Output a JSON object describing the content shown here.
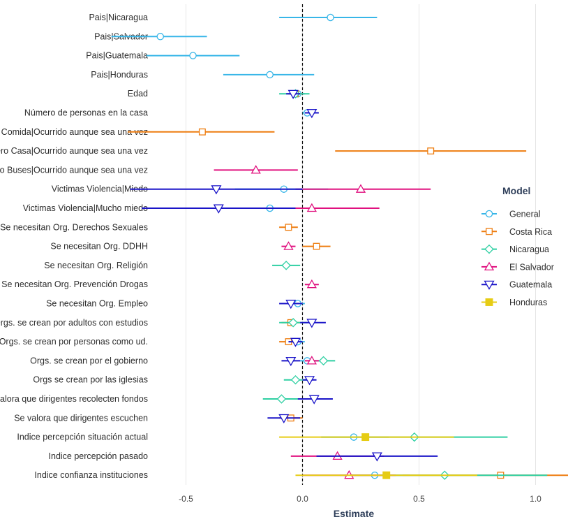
{
  "chart_data": {
    "type": "scatter",
    "subtype": "coefficient-plot",
    "xlabel": "Estimate",
    "xlim": [
      -0.97,
      1.2
    ],
    "xticks": [
      -0.5,
      0.0,
      0.5,
      1.0
    ],
    "xtick_labels": [
      "-0.5",
      "0.0",
      "0.5",
      "1.0"
    ],
    "reference_line": 0,
    "grid": true,
    "legend": {
      "title": "Model",
      "position": "right"
    },
    "categories": [
      "Pais|Nicaragua",
      "Pais|Salvador",
      "Pais|Guatemala",
      "Pais|Honduras",
      "Edad",
      "Número de personas en la casa",
      "Dinero Comida|Ocurrido aunque sea una vez",
      "Dinero Casa|Ocurrido aunque sea una vez",
      "Dinero Buses|Ocurrido aunque sea una vez",
      "Victimas Violencia|Miedo",
      "Victimas Violencia|Mucho miedo",
      "Se necesitan Org. Derechos Sexuales",
      "Se necesitan Org. DDHH",
      "Se necesitan Org. Religión",
      "Se necesitan Org. Prevención Drogas",
      "Se necesitan Org. Empleo",
      "Orgs. se crean por adultos con estudios",
      "Orgs. se crean por personas como ud.",
      "Orgs. se crean por el gobierno",
      "Orgs se crean por las iglesias",
      "Se valora que dirigentes recolecten fondos",
      "Se valora que dirigentes escuchen",
      "Indice percepción situación actual",
      "Indice percepción pasado",
      "Indice confianza instituciones"
    ],
    "series": [
      {
        "name": "General",
        "color": "#38b6e8",
        "shape": "circle",
        "points": [
          {
            "y": 0,
            "est": 0.12,
            "lo": -0.1,
            "hi": 0.32
          },
          {
            "y": 1,
            "est": -0.61,
            "lo": -0.82,
            "hi": -0.41
          },
          {
            "y": 2,
            "est": -0.47,
            "lo": -0.67,
            "hi": -0.27
          },
          {
            "y": 3,
            "est": -0.14,
            "lo": -0.34,
            "hi": 0.05
          },
          {
            "y": 4,
            "est": -0.02,
            "lo": -0.05,
            "hi": 0.01
          },
          {
            "y": 5,
            "est": 0.02,
            "lo": 0.0,
            "hi": 0.04
          },
          {
            "y": 9,
            "est": -0.08,
            "lo": -0.29,
            "hi": 0.11
          },
          {
            "y": 10,
            "est": -0.14,
            "lo": -0.34,
            "hi": 0.05
          },
          {
            "y": 15,
            "est": -0.02,
            "lo": -0.05,
            "hi": 0.01
          },
          {
            "y": 17,
            "est": -0.02,
            "lo": -0.05,
            "hi": 0.01
          },
          {
            "y": 18,
            "est": 0.02,
            "lo": -0.01,
            "hi": 0.05
          },
          {
            "y": 22,
            "est": 0.22,
            "lo": 0.08,
            "hi": 0.37
          },
          {
            "y": 24,
            "est": 0.31,
            "lo": 0.16,
            "hi": 0.46
          }
        ]
      },
      {
        "name": "Costa Rica",
        "color": "#ee7d10",
        "shape": "square",
        "points": [
          {
            "y": 4,
            "est": -0.03,
            "lo": -0.06,
            "hi": 0.0
          },
          {
            "y": 6,
            "est": -0.43,
            "lo": -0.75,
            "hi": -0.12
          },
          {
            "y": 7,
            "est": 0.55,
            "lo": 0.14,
            "hi": 0.96
          },
          {
            "y": 11,
            "est": -0.06,
            "lo": -0.1,
            "hi": -0.02
          },
          {
            "y": 12,
            "est": 0.06,
            "lo": 0.0,
            "hi": 0.12
          },
          {
            "y": 16,
            "est": -0.05,
            "lo": -0.09,
            "hi": -0.01
          },
          {
            "y": 17,
            "est": -0.06,
            "lo": -0.1,
            "hi": -0.02
          },
          {
            "y": 21,
            "est": -0.05,
            "lo": -0.1,
            "hi": 0.0
          },
          {
            "y": 24,
            "est": 0.85,
            "lo": 0.43,
            "hi": 1.28
          }
        ]
      },
      {
        "name": "Nicaragua",
        "color": "#2ecfa2",
        "shape": "diamond",
        "points": [
          {
            "y": 4,
            "est": -0.03,
            "lo": -0.1,
            "hi": 0.03
          },
          {
            "y": 13,
            "est": -0.07,
            "lo": -0.13,
            "hi": -0.01
          },
          {
            "y": 16,
            "est": -0.04,
            "lo": -0.1,
            "hi": 0.02
          },
          {
            "y": 18,
            "est": 0.09,
            "lo": 0.04,
            "hi": 0.14
          },
          {
            "y": 19,
            "est": -0.03,
            "lo": -0.08,
            "hi": 0.02
          },
          {
            "y": 20,
            "est": -0.09,
            "lo": -0.17,
            "hi": -0.01
          },
          {
            "y": 22,
            "est": 0.48,
            "lo": 0.08,
            "hi": 0.88
          },
          {
            "y": 24,
            "est": 0.61,
            "lo": 0.18,
            "hi": 1.05
          }
        ]
      },
      {
        "name": "El Salvador",
        "color": "#e0117f",
        "shape": "triangle-up",
        "points": [
          {
            "y": 8,
            "est": -0.2,
            "lo": -0.38,
            "hi": -0.02
          },
          {
            "y": 9,
            "est": 0.25,
            "lo": -0.03,
            "hi": 0.55
          },
          {
            "y": 10,
            "est": 0.04,
            "lo": -0.26,
            "hi": 0.33
          },
          {
            "y": 12,
            "est": -0.06,
            "lo": -0.09,
            "hi": -0.03
          },
          {
            "y": 14,
            "est": 0.04,
            "lo": 0.01,
            "hi": 0.07
          },
          {
            "y": 18,
            "est": 0.04,
            "lo": 0.01,
            "hi": 0.07
          },
          {
            "y": 23,
            "est": 0.15,
            "lo": -0.05,
            "hi": 0.35
          },
          {
            "y": 24,
            "est": 0.2,
            "lo": 0.0,
            "hi": 0.4
          }
        ]
      },
      {
        "name": "Guatemala",
        "color": "#1a14c8",
        "shape": "triangle-down",
        "points": [
          {
            "y": 4,
            "est": -0.04,
            "lo": -0.07,
            "hi": -0.01
          },
          {
            "y": 5,
            "est": 0.04,
            "lo": 0.01,
            "hi": 0.07
          },
          {
            "y": 9,
            "est": -0.37,
            "lo": -0.74,
            "hi": 0.0
          },
          {
            "y": 10,
            "est": -0.36,
            "lo": -0.69,
            "hi": -0.03
          },
          {
            "y": 15,
            "est": -0.05,
            "lo": -0.1,
            "hi": 0.0
          },
          {
            "y": 16,
            "est": 0.04,
            "lo": -0.01,
            "hi": 0.1
          },
          {
            "y": 17,
            "est": -0.03,
            "lo": -0.06,
            "hi": 0.0
          },
          {
            "y": 18,
            "est": -0.05,
            "lo": -0.09,
            "hi": -0.01
          },
          {
            "y": 19,
            "est": 0.03,
            "lo": 0.0,
            "hi": 0.06
          },
          {
            "y": 20,
            "est": 0.05,
            "lo": -0.02,
            "hi": 0.13
          },
          {
            "y": 21,
            "est": -0.08,
            "lo": -0.15,
            "hi": -0.01
          },
          {
            "y": 23,
            "est": 0.32,
            "lo": 0.06,
            "hi": 0.58
          }
        ]
      },
      {
        "name": "Honduras",
        "color": "#e6cc14",
        "shape": "square-filled",
        "points": [
          {
            "y": 22,
            "est": 0.27,
            "lo": -0.1,
            "hi": 0.65
          },
          {
            "y": 24,
            "est": 0.36,
            "lo": -0.03,
            "hi": 0.75
          }
        ]
      }
    ]
  }
}
